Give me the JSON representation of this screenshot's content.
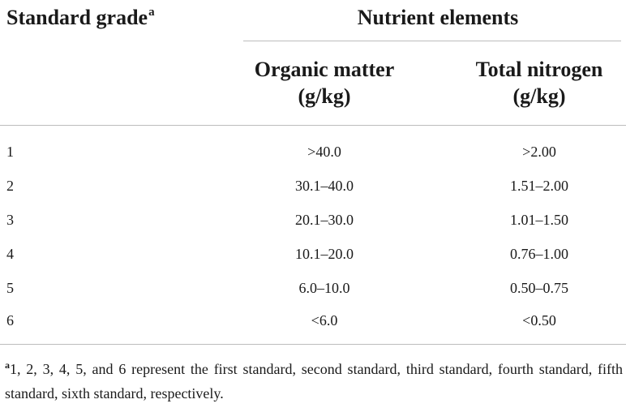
{
  "table": {
    "header": {
      "stub_label": "Standard grade",
      "stub_footnote_mark": "a",
      "group_label": "Nutrient elements",
      "columns": [
        {
          "line1": "Organic matter",
          "line2": "(g/kg)"
        },
        {
          "line1": "Total nitrogen",
          "line2": "(g/kg)"
        }
      ]
    },
    "rows": [
      {
        "grade": "1",
        "organic_matter": ">40.0",
        "total_nitrogen": ">2.00"
      },
      {
        "grade": "2",
        "organic_matter": "30.1–40.0",
        "total_nitrogen": "1.51–2.00"
      },
      {
        "grade": "3",
        "organic_matter": "20.1–30.0",
        "total_nitrogen": "1.01–1.50"
      },
      {
        "grade": "4",
        "organic_matter": "10.1–20.0",
        "total_nitrogen": "0.76–1.00"
      },
      {
        "grade": "5",
        "organic_matter": "6.0–10.0",
        "total_nitrogen": "0.50–0.75"
      },
      {
        "grade": "6",
        "organic_matter": "<6.0",
        "total_nitrogen": "<0.50"
      }
    ],
    "footnote": {
      "mark": "a",
      "text": "1, 2, 3, 4, 5, and 6 represent the first standard, second standard, third standard, fourth standard, fifth standard, sixth standard, respectively."
    }
  }
}
